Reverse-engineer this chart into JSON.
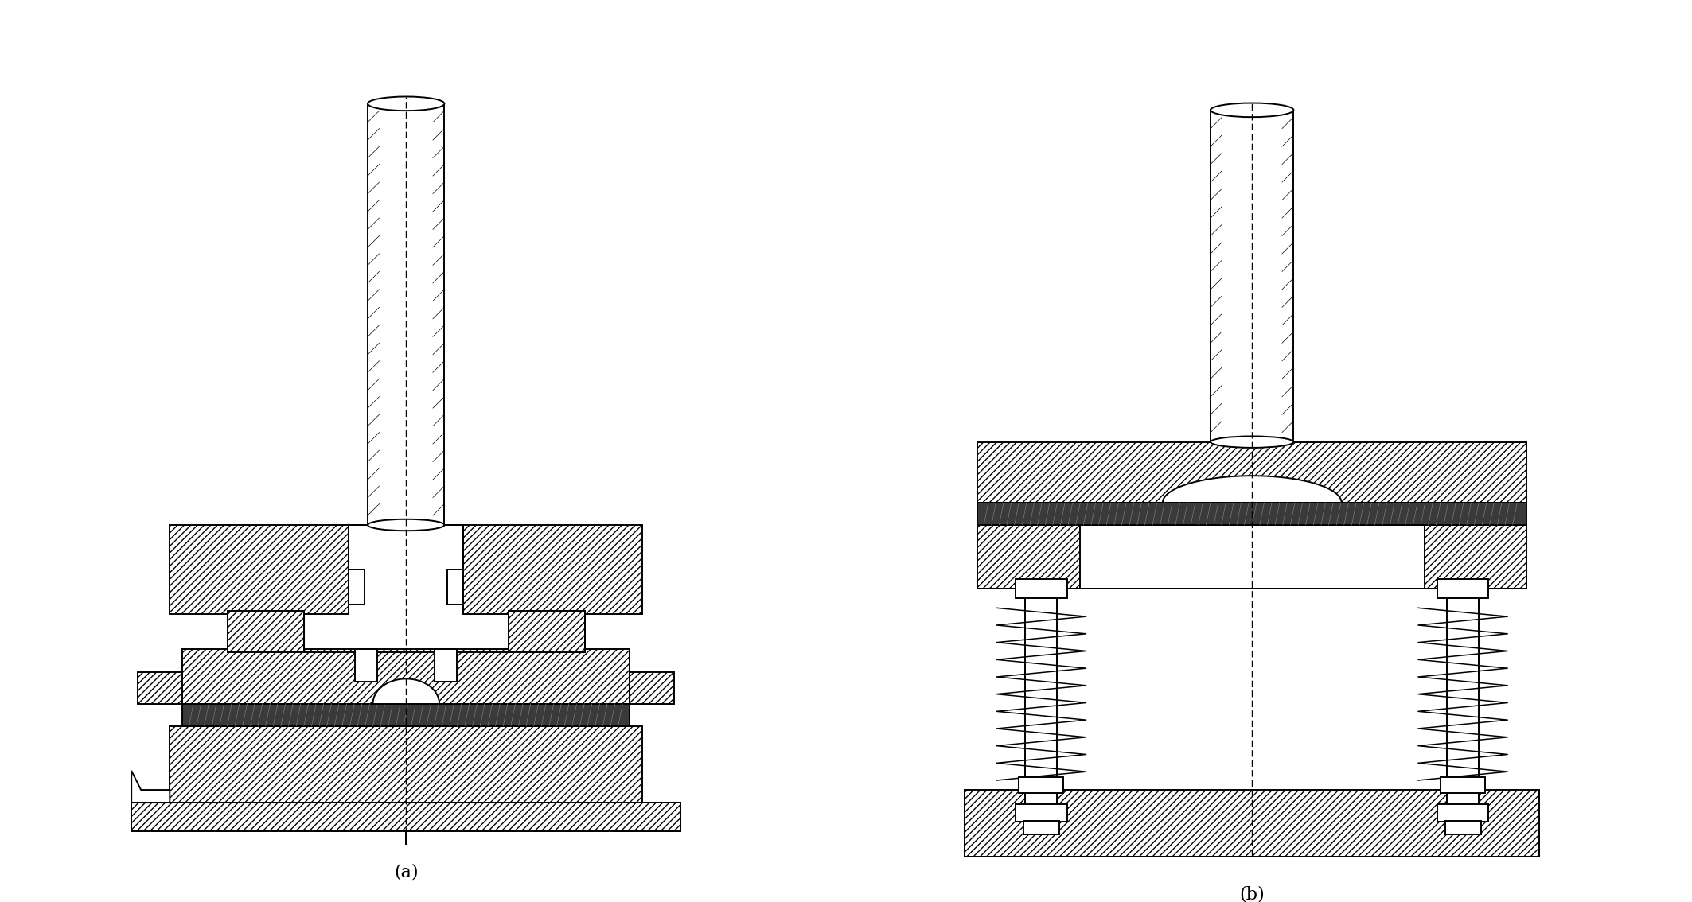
{
  "bg_color": "#ffffff",
  "line_color": "#000000",
  "label_a": "(a)",
  "label_b": "(b)",
  "fig_width": 21.26,
  "fig_height": 11.34,
  "dpi": 100
}
